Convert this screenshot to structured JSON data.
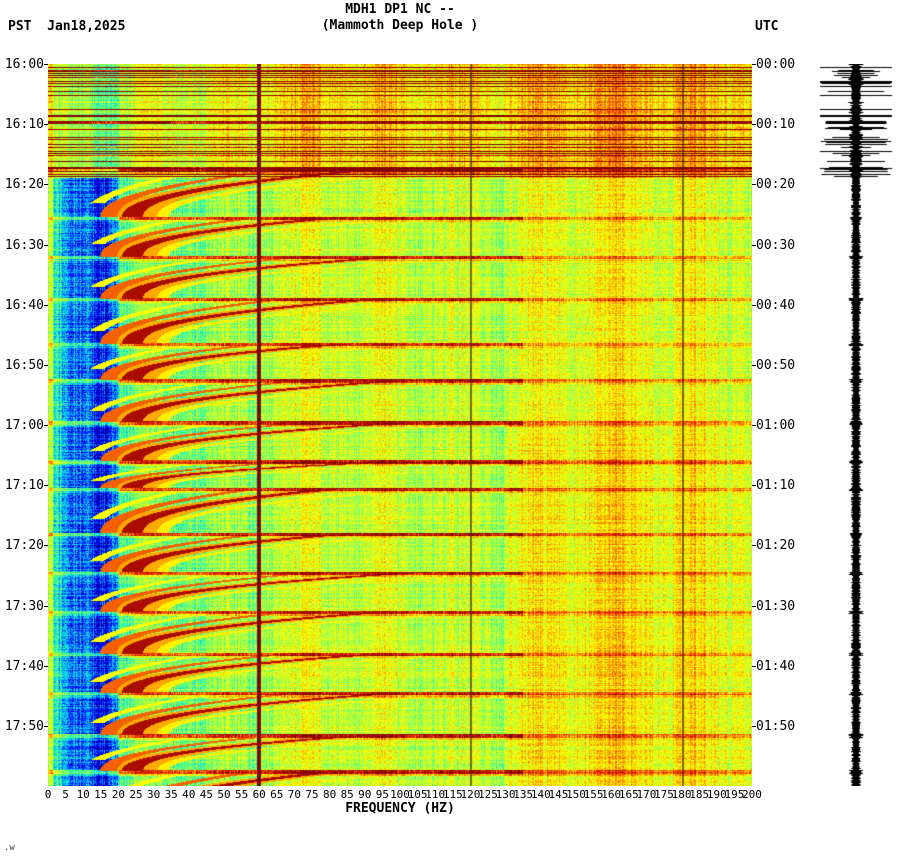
{
  "header": {
    "pst_date": "PST  Jan18,2025",
    "title": "MDH1 DP1 NC --",
    "subtitle": "(Mammoth Deep Hole )",
    "utc": "UTC"
  },
  "footer_mark": ".w",
  "chart_data": {
    "type": "heatmap",
    "subtype": "spectrogram",
    "title": "MDH1 DP1 NC --",
    "subtitle": "(Mammoth Deep Hole )",
    "station": "MDH1 DP1 NC",
    "station_description": "Mammoth Deep Hole",
    "xlabel": "FREQUENCY (HZ)",
    "x_range_hz": [
      0,
      200
    ],
    "x_tick_step_hz": 5,
    "x_tick_labels": [
      0,
      5,
      10,
      15,
      20,
      25,
      30,
      35,
      40,
      45,
      50,
      55,
      60,
      65,
      70,
      75,
      80,
      85,
      90,
      95,
      100,
      105,
      110,
      115,
      120,
      125,
      130,
      135,
      140,
      145,
      150,
      155,
      160,
      165,
      170,
      175,
      180,
      185,
      190,
      195,
      200
    ],
    "left_timezone": "PST",
    "right_timezone": "UTC",
    "date": "Jan18,2025",
    "duration_min": 120,
    "left_time_ticks": [
      "16:00",
      "16:10",
      "16:20",
      "16:30",
      "16:40",
      "16:50",
      "17:00",
      "17:10",
      "17:20",
      "17:30",
      "17:40",
      "17:50"
    ],
    "right_time_ticks": [
      "00:00",
      "00:10",
      "00:20",
      "00:30",
      "00:40",
      "00:50",
      "01:00",
      "01:10",
      "01:20",
      "01:30",
      "01:40",
      "01:50"
    ],
    "grid": "off",
    "legend_position": "none",
    "features": {
      "mains_lines_hz": [
        60,
        120,
        180
      ],
      "event_onsets_min": [
        17.5,
        25.5,
        32,
        39,
        46.5,
        52.5,
        59.5,
        66,
        70.5,
        78,
        84.5,
        91,
        98,
        104.5,
        111.5,
        117.5
      ],
      "event_freq_low_hz": 24,
      "event_freq_high_hz": 95,
      "event_shape": "descending-glide-arc",
      "broadband_noise_min": [
        0,
        19
      ],
      "big_spikes_min": [
        3.2,
        9.8,
        10.6,
        12.9,
        17.4
      ]
    },
    "colormap": [
      "#000080",
      "#0000FF",
      "#00C8FF",
      "#40FF90",
      "#B4FF3C",
      "#FFFF00",
      "#FF8C00",
      "#E61E00",
      "#820000"
    ]
  },
  "seismogram": {
    "color": "#000000"
  }
}
